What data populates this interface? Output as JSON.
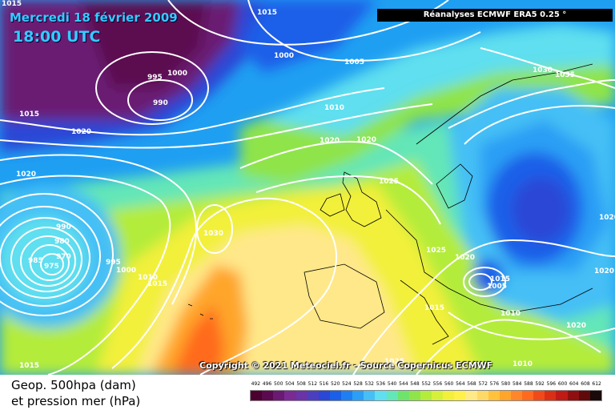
{
  "header": {
    "date": "Mercredi 18 février 2009",
    "time": "18:00 UTC",
    "source": "Réanalyses ECMWF ERA5 0.25 °"
  },
  "footer": {
    "copyright": "Copyright © 2021 Meteociel.fr - Source Copernicus ECMWF",
    "legend_line_1": "Geop. 500hpa (dam)",
    "legend_line_2": "et pression mer (hPa)"
  },
  "legend_scale": {
    "labels": [
      "492",
      "496",
      "500",
      "504",
      "508",
      "512",
      "516",
      "520",
      "524",
      "528",
      "532",
      "536",
      "540",
      "544",
      "548",
      "552",
      "556",
      "560",
      "564",
      "568",
      "572",
      "576",
      "580",
      "584",
      "588",
      "592",
      "596",
      "600",
      "604",
      "608",
      "612"
    ],
    "colors": [
      "#4b0030",
      "#5c0a4f",
      "#6b1a73",
      "#7a2a93",
      "#6a33a8",
      "#4b3fbf",
      "#2a47d6",
      "#1a5fe8",
      "#1f7ff2",
      "#2a9ff5",
      "#45bff5",
      "#5fdfef",
      "#63e6b8",
      "#6fe46b",
      "#8fe44a",
      "#b4ec3b",
      "#d6f039",
      "#f2f03a",
      "#fff04a",
      "#ffea85",
      "#ffd966",
      "#ffc23a",
      "#ffa52a",
      "#ff872a",
      "#ff6a1f",
      "#f04a1a",
      "#d93015",
      "#bf1a15",
      "#8f0f10",
      "#600a0a",
      "#1a0a0a"
    ]
  },
  "isobar_labels": [
    "1015",
    "1015",
    "1000",
    "1005",
    "995",
    "1000",
    "990",
    "1010",
    "1015",
    "1020",
    "1020",
    "1030",
    "1035",
    "1020",
    "1025",
    "1025",
    "990",
    "980",
    "970",
    "975",
    "985",
    "995",
    "1000",
    "1010",
    "1015",
    "1030",
    "1020",
    "1015",
    "1005",
    "1015",
    "1010",
    "1020",
    "1025",
    "1020",
    "1020",
    "1010",
    "1015",
    "1020"
  ]
}
